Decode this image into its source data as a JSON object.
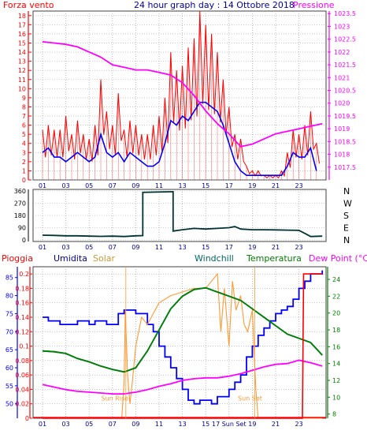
{
  "header": {
    "left": "Forza vento",
    "center": "24 hour graph day : 14 Ottobre 2018",
    "right": "Pressione"
  },
  "colors": {
    "wind_gust": "#ff0000",
    "wind_avg": "#0000ff",
    "pressure": "#ff00ff",
    "direction": "#003333",
    "humidity": "#0000ff",
    "solar": "#ff9933",
    "windchill": "#006666",
    "temperature": "#008000",
    "dew_point": "#ff00ff",
    "rain": "#ff0000",
    "axis_red": "#ff0000",
    "axis_magenta": "#ff00ff",
    "axis_blue": "#0000ff",
    "axis_green": "#008000",
    "text_blue": "#000099",
    "grid": "#a0a0a0"
  },
  "x_ticks": [
    "01",
    "03",
    "05",
    "07",
    "09",
    "11",
    "13",
    "15",
    "17",
    "19",
    "21",
    "23"
  ],
  "panel2_x_ticks": [
    "01",
    "03",
    "05",
    "07",
    "09",
    "11",
    "13",
    "15",
    "17 Sun Set",
    "19",
    "21",
    "23"
  ],
  "chart_data": [
    {
      "type": "line",
      "ylim_left": [
        0,
        18.5
      ],
      "left_ticks": [
        "0",
        "1",
        "2",
        "3",
        "4",
        "5",
        "6",
        "7",
        "8",
        "9",
        "10",
        "11",
        "12",
        "13",
        "14",
        "15",
        "16",
        "17",
        "18"
      ],
      "ylim_right": [
        1017,
        1023.6
      ],
      "right_ticks": [
        "1017.5",
        "1018",
        "1018.5",
        "1019",
        "1019.5",
        "1020",
        "1020.5",
        "1021",
        "1021.5",
        "1022",
        "1022.5",
        "1023",
        "1023.5"
      ],
      "x_range": [
        0,
        24
      ],
      "grid": true,
      "series": [
        {
          "name": "Forza vento",
          "axis": "left",
          "style": "gust",
          "x": [
            0,
            0.5,
            1,
            1.5,
            2,
            2.5,
            3,
            3.5,
            4,
            4.5,
            5,
            5.5,
            6,
            6.5,
            7,
            7.5,
            8,
            8.5,
            9,
            9.5,
            10,
            10.5,
            11,
            11.5,
            12,
            12.5,
            13,
            13.5,
            14,
            14.5,
            15,
            15.5,
            16,
            16.5,
            17,
            17.5,
            18,
            18.5,
            19,
            19.5,
            20,
            20.5,
            21,
            21.5,
            22,
            22.5,
            23,
            23.5
          ],
          "values": [
            5.5,
            6,
            5.5,
            5.5,
            7,
            5,
            6.5,
            5,
            4.5,
            6,
            11,
            7.5,
            6,
            9.5,
            5.5,
            6.5,
            6,
            5,
            5,
            6,
            7,
            9,
            14,
            12,
            12.5,
            14.5,
            15.5,
            18.5,
            17,
            16,
            14,
            11,
            8,
            5,
            4.5,
            1.5,
            1,
            1,
            0.5,
            0.5,
            0.5,
            1,
            3,
            5.5,
            5,
            6,
            7.5,
            4
          ]
        },
        {
          "name": "",
          "axis": "left",
          "style": "avg",
          "x": [
            0,
            0.5,
            1,
            1.5,
            2,
            2.5,
            3,
            3.5,
            4,
            4.5,
            5,
            5.5,
            6,
            6.5,
            7,
            7.5,
            8,
            8.5,
            9,
            9.5,
            10,
            10.5,
            11,
            11.5,
            12,
            12.5,
            13,
            13.5,
            14,
            14.5,
            15,
            15.5,
            16,
            16.5,
            17,
            17.5,
            18,
            18.5,
            19,
            19.5,
            20,
            20.5,
            21,
            21.5,
            22,
            22.5,
            23,
            23.5
          ],
          "values": [
            3,
            3.5,
            2.5,
            2.5,
            2,
            2.5,
            3,
            2.5,
            2,
            2.5,
            5,
            3,
            2.5,
            3,
            2,
            3,
            2.5,
            2,
            1.5,
            1.5,
            2,
            4,
            6.5,
            6,
            7,
            6.5,
            7.5,
            8.5,
            8.5,
            8,
            7.5,
            6,
            4,
            2,
            1,
            0.5,
            0.5,
            0.5,
            0.5,
            0.5,
            0.5,
            0.5,
            1.5,
            3,
            2.5,
            2.5,
            3.5,
            1
          ]
        },
        {
          "name": "Pressione",
          "axis": "right",
          "style": "pressure",
          "x": [
            0,
            1,
            2,
            3,
            4,
            5,
            6,
            7,
            8,
            9,
            10,
            11,
            12,
            13,
            14,
            15,
            16,
            17,
            18,
            19,
            20,
            21,
            22,
            23,
            24
          ],
          "values": [
            1022.4,
            1022.35,
            1022.3,
            1022.2,
            1022.0,
            1021.8,
            1021.5,
            1021.4,
            1021.3,
            1021.3,
            1021.2,
            1021.1,
            1020.8,
            1020.3,
            1019.7,
            1019.2,
            1018.8,
            1018.3,
            1018.4,
            1018.6,
            1018.8,
            1018.9,
            1019.0,
            1019.1,
            1019.2
          ]
        }
      ]
    },
    {
      "type": "line",
      "ylim": [
        0,
        360
      ],
      "left_ticks": [
        "0",
        "90",
        "180",
        "270",
        "360"
      ],
      "right_labels": [
        "N",
        "W",
        "S",
        "E",
        "N"
      ],
      "x_range": [
        0,
        24
      ],
      "series": [
        {
          "name": "",
          "x": [
            0,
            1,
            2,
            3,
            4,
            5,
            6,
            7,
            8,
            8.6,
            8.6,
            11.2,
            11.2,
            12,
            13,
            14,
            15,
            16,
            16.5,
            17,
            18,
            19,
            20,
            21,
            22,
            22.5,
            23,
            24
          ],
          "values": [
            35,
            33,
            30,
            30,
            28,
            26,
            28,
            25,
            30,
            32,
            350,
            355,
            65,
            75,
            85,
            80,
            85,
            90,
            98,
            80,
            75,
            75,
            74,
            72,
            70,
            48,
            25,
            28
          ]
        }
      ]
    },
    {
      "type": "line",
      "left_outer": {
        "name": "Pioggia",
        "ylim": [
          0,
          0.21
        ],
        "ticks": [
          "0",
          "0.02",
          "0.04",
          "0.06",
          "0.08",
          "0.1",
          "0.12",
          "0.14",
          "0.16",
          "0.18",
          "0.2"
        ]
      },
      "left_inner": {
        "name": "Umidita",
        "ylim": [
          46,
          88
        ],
        "ticks": [
          "50",
          "55",
          "60",
          "65",
          "70",
          "75",
          "80",
          "85"
        ]
      },
      "right": {
        "name": "Dew Point (°C)",
        "ylim": [
          7.5,
          25.5
        ],
        "ticks": [
          "8",
          "10",
          "12",
          "14",
          "16",
          "18",
          "20",
          "22",
          "24"
        ]
      },
      "x_range": [
        0,
        24
      ],
      "annotations": [
        "Sun Rise",
        "Sun Set"
      ],
      "series": [
        {
          "name": "Umidita",
          "axis": "left_inner",
          "x": [
            0,
            0.5,
            1,
            1.5,
            2,
            2.5,
            3,
            3.5,
            4,
            4.5,
            5,
            5.5,
            6,
            6.5,
            7,
            7.5,
            8,
            8.5,
            9,
            9.5,
            10,
            10.5,
            11,
            11.5,
            12,
            12.5,
            13,
            13.5,
            14,
            14.5,
            15,
            15.5,
            16,
            16.5,
            17,
            17.5,
            18,
            18.5,
            19,
            19.5,
            20,
            20.5,
            21,
            21.5,
            22,
            22.5,
            23,
            23.5,
            24
          ],
          "values": [
            74,
            73,
            73,
            72,
            72,
            72,
            73,
            73,
            72,
            73,
            73,
            72,
            72,
            75,
            76,
            76,
            75,
            75,
            72,
            70,
            66,
            63,
            60,
            57,
            54,
            51,
            50,
            51,
            51,
            50,
            52,
            52,
            54,
            56,
            58,
            63,
            66,
            69,
            71,
            73,
            75,
            76,
            77,
            79,
            82,
            84,
            86,
            86,
            87
          ]
        },
        {
          "name": "Solar",
          "axis": "left_outer",
          "x": [
            0,
            6.8,
            7.0,
            7.1,
            7.3,
            7.5,
            7.7,
            8,
            8.5,
            9,
            10,
            11,
            12,
            13,
            14,
            14.5,
            15,
            15.3,
            15.6,
            16,
            16.3,
            16.6,
            17,
            17.3,
            17.6,
            18,
            18.3,
            18.5,
            24
          ],
          "values": [
            0,
            0,
            0.05,
            0.15,
            0.06,
            0.02,
            0.05,
            0.1,
            0.14,
            0.13,
            0.16,
            0.17,
            0.175,
            0.18,
            0.18,
            0.19,
            0.2,
            0.12,
            0.18,
            0.1,
            0.19,
            0.15,
            0.17,
            0.13,
            0.12,
            0.15,
            0.04,
            0,
            0
          ]
        },
        {
          "name": "Windchill",
          "axis": "right",
          "x": [
            0,
            1,
            2,
            3,
            4,
            5,
            6,
            7,
            8,
            9,
            10,
            11,
            12,
            13,
            14,
            15,
            16,
            17,
            18,
            19,
            20,
            21,
            22,
            23,
            24
          ],
          "values": [
            15.5,
            15.4,
            15.2,
            14.6,
            14.2,
            13.7,
            13.3,
            13.0,
            13.5,
            15.5,
            18.0,
            20.5,
            22.0,
            22.8,
            23.0,
            22.5,
            22.0,
            21.5,
            20.5,
            19.5,
            18.5,
            17.5,
            17.0,
            16.5,
            15.0
          ]
        },
        {
          "name": "Temperatura",
          "axis": "right",
          "x": [
            0,
            1,
            2,
            3,
            4,
            5,
            6,
            7,
            8,
            9,
            10,
            11,
            12,
            13,
            14,
            15,
            16,
            17,
            18,
            19,
            20,
            21,
            22,
            23,
            24
          ],
          "values": [
            15.5,
            15.4,
            15.2,
            14.6,
            14.2,
            13.7,
            13.3,
            13.0,
            13.5,
            15.5,
            18.0,
            20.5,
            22.0,
            22.8,
            23.0,
            22.5,
            22.0,
            21.5,
            20.5,
            19.5,
            18.5,
            17.5,
            17.0,
            16.5,
            15.0
          ]
        },
        {
          "name": "Dew Point",
          "axis": "right",
          "x": [
            0,
            1,
            2,
            3,
            4,
            5,
            6,
            7,
            8,
            9,
            10,
            11,
            12,
            13,
            14,
            15,
            16,
            17,
            18,
            19,
            20,
            21,
            22,
            23,
            24
          ],
          "values": [
            11.5,
            11.2,
            10.9,
            10.7,
            10.6,
            10.5,
            10.4,
            10.4,
            10.6,
            10.9,
            11.3,
            11.6,
            12.0,
            12.2,
            12.3,
            12.3,
            12.5,
            12.8,
            13.2,
            13.6,
            13.9,
            14.0,
            14.4,
            14.1,
            13.7
          ]
        },
        {
          "name": "Pioggia",
          "axis": "left_outer",
          "x": [
            0,
            22.3,
            22.4,
            24
          ],
          "values": [
            0,
            0,
            0.2,
            0.2
          ]
        }
      ]
    }
  ],
  "panel3_header": {
    "rain": "Pioggia",
    "humidity": "Umidita",
    "solar": "Solar",
    "windchill": "Windchill",
    "temperature": "Temperatura",
    "dew_point": "Dew Point (°C)"
  },
  "sun": {
    "rise": "Sun Rise",
    "set": "Sun Set"
  }
}
